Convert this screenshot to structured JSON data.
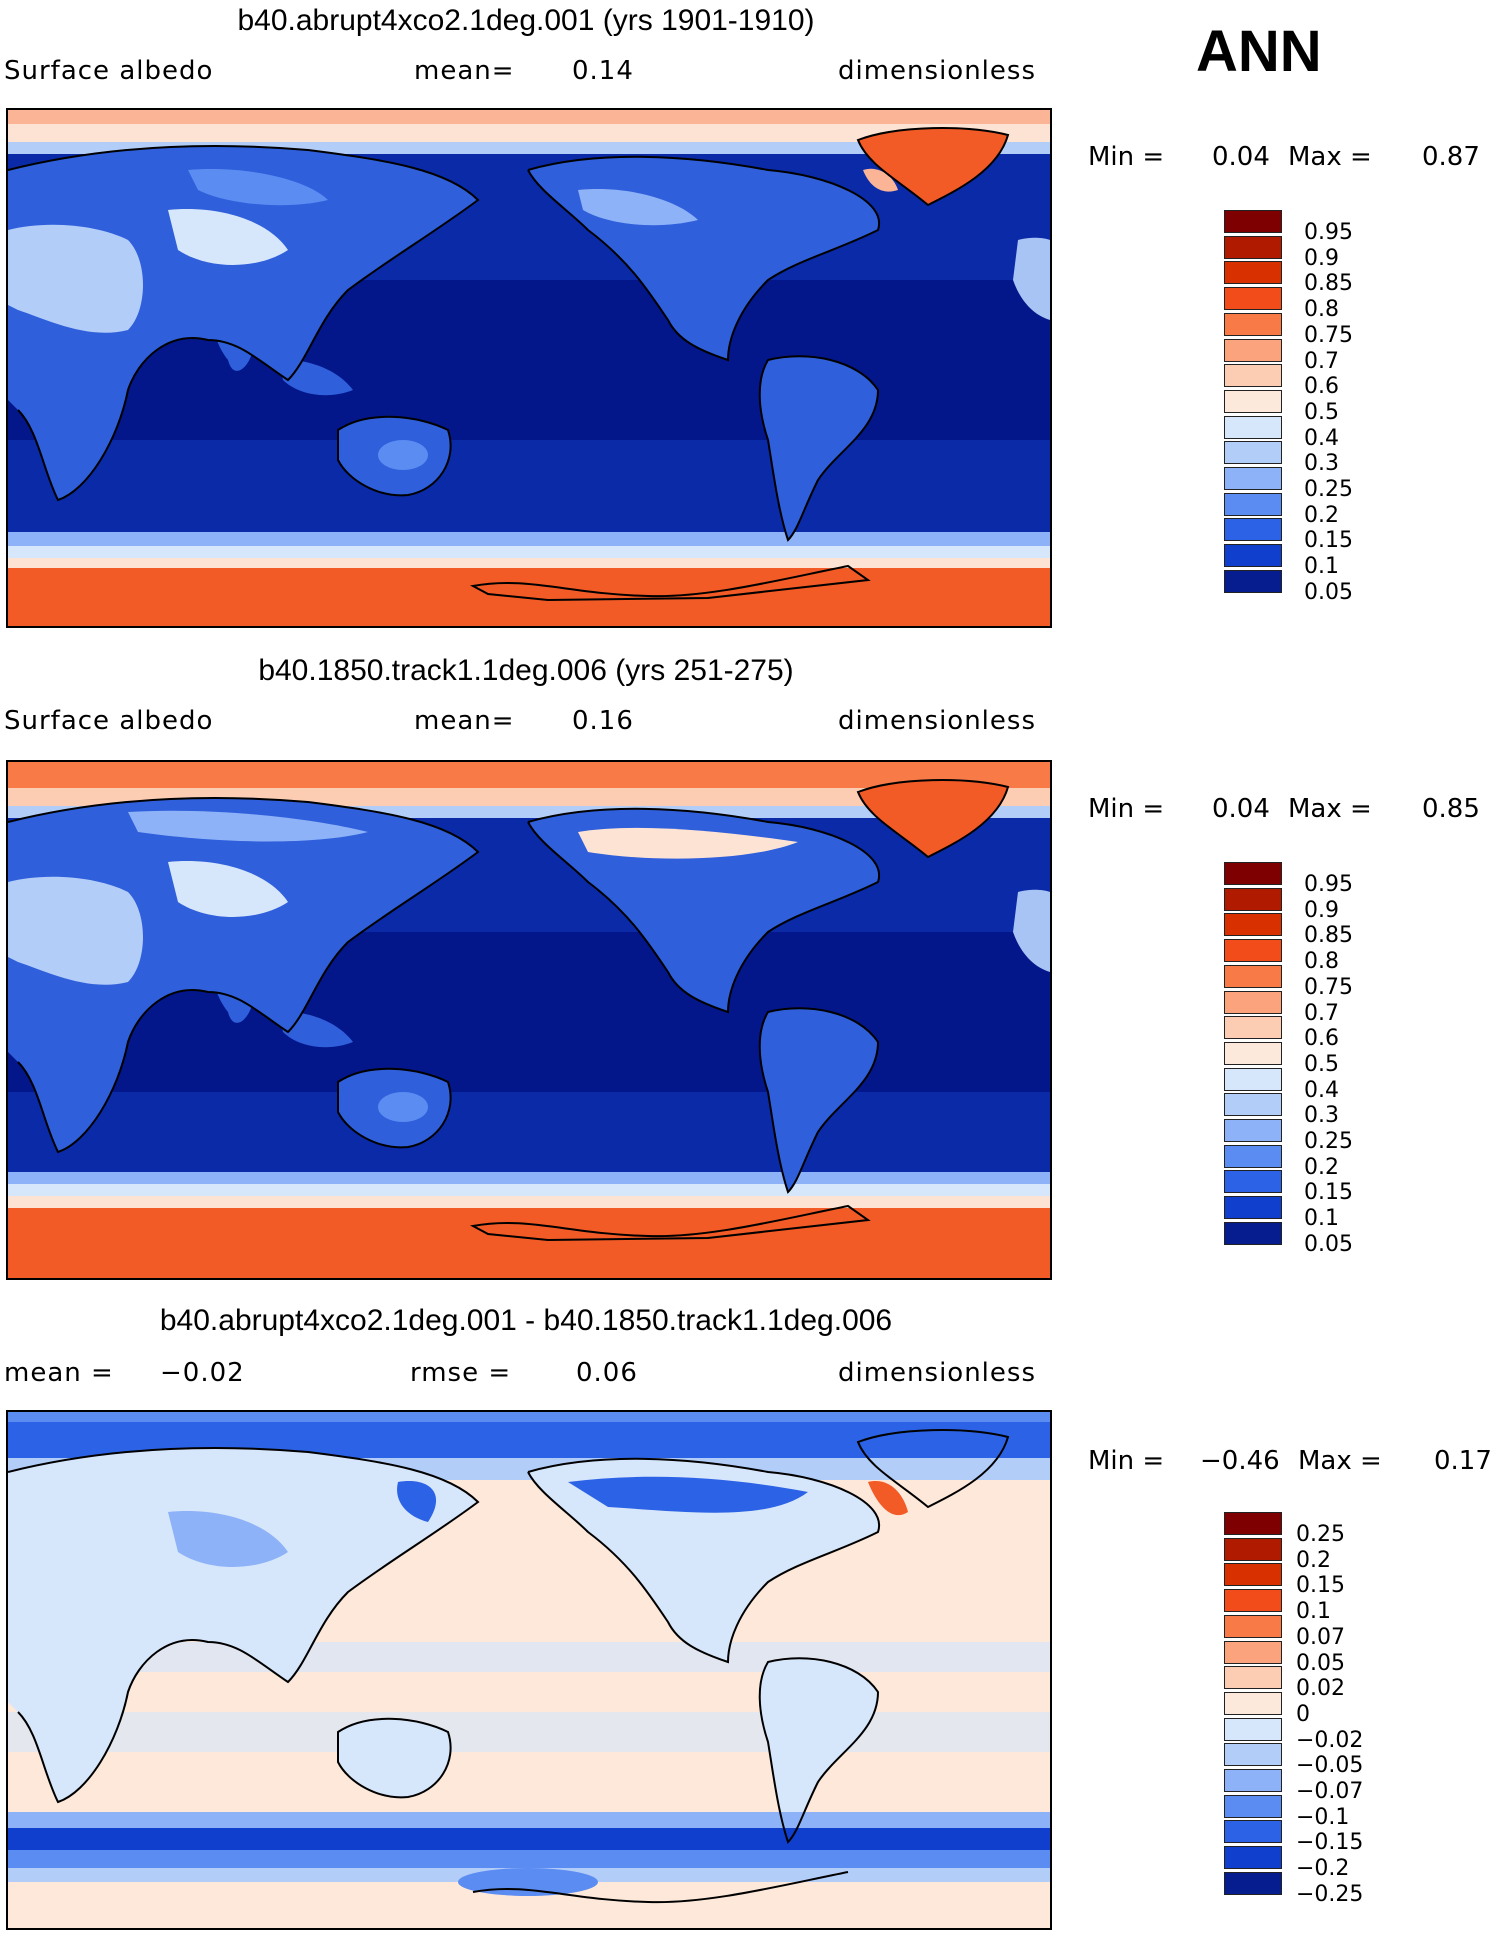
{
  "season_label": "ANN",
  "panels": [
    {
      "title": "b40.abrupt4xco2.1deg.001 (yrs 1901-1910)",
      "left_label": "Surface albedo",
      "middle_label": "mean=",
      "middle_value": "0.14",
      "right_label": "dimensionless",
      "min_label": "Min =",
      "min_value": "0.04",
      "max_label": "Max =",
      "max_value": "0.87",
      "levels": [
        "0.95",
        "0.9",
        "0.85",
        "0.8",
        "0.75",
        "0.7",
        "0.6",
        "0.5",
        "0.4",
        "0.3",
        "0.25",
        "0.2",
        "0.15",
        "0.1",
        "0.05"
      ]
    },
    {
      "title": "b40.1850.track1.1deg.006 (yrs 251-275)",
      "left_label": "Surface albedo",
      "middle_label": "mean=",
      "middle_value": "0.16",
      "right_label": "dimensionless",
      "min_label": "Min =",
      "min_value": "0.04",
      "max_label": "Max =",
      "max_value": "0.85",
      "levels": [
        "0.95",
        "0.9",
        "0.85",
        "0.8",
        "0.75",
        "0.7",
        "0.6",
        "0.5",
        "0.4",
        "0.3",
        "0.25",
        "0.2",
        "0.15",
        "0.1",
        "0.05"
      ]
    },
    {
      "title": "b40.abrupt4xco2.1deg.001 - b40.1850.track1.1deg.006",
      "left_label": "mean =",
      "left_value": "−0.02",
      "middle_label": "rmse =",
      "middle_value": "0.06",
      "right_label": "dimensionless",
      "min_label": "Min =",
      "min_value": "−0.46",
      "max_label": "Max =",
      "max_value": "0.17",
      "levels": [
        "0.25",
        "0.2",
        "0.15",
        "0.1",
        "0.07",
        "0.05",
        "0.02",
        "0",
        "−0.02",
        "−0.05",
        "−0.07",
        "−0.1",
        "−0.15",
        "−0.2",
        "−0.25"
      ]
    }
  ],
  "colors": {
    "scale": [
      "#7f0000",
      "#b01b00",
      "#d93000",
      "#f24c1a",
      "#f77a47",
      "#fba37d",
      "#fdcdb3",
      "#fde9dc",
      "#d6e6fb",
      "#b3cdf9",
      "#8db2f7",
      "#5b8cf2",
      "#2c63e6",
      "#0f3fcc",
      "#061d8f"
    ],
    "deep_ocean": "#03168a",
    "ocean_mid": "#0a2aa8",
    "land_blue": "#2f5fdb",
    "land_light": "#a8c4f5",
    "ice_orange": "#f25a26",
    "ice_light": "#fde3d3",
    "diff_bg": "#fde8da",
    "diff_land": "#d6e6fb"
  }
}
